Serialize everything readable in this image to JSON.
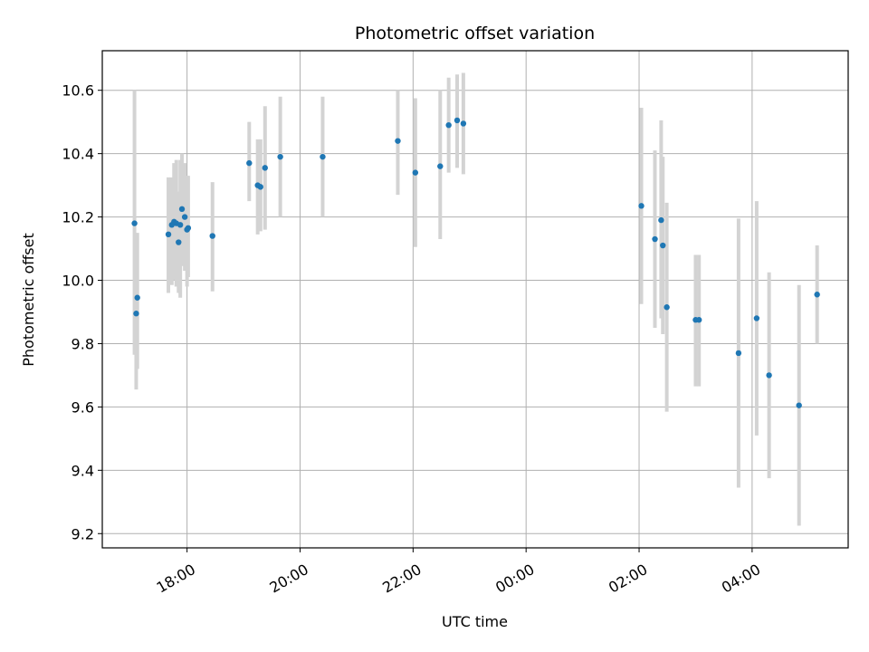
{
  "chart_data": {
    "type": "scatter",
    "title": "Photometric offset variation",
    "xlabel": "UTC time",
    "ylabel": "Photometric offset",
    "x_axis": "time (UTC, hours since 00:00 of first day)",
    "xlim": [
      16.5,
      29.7
    ],
    "ylim": [
      9.155,
      10.725
    ],
    "x_ticks": [
      {
        "value": 18,
        "label": "18:00"
      },
      {
        "value": 20,
        "label": "20:00"
      },
      {
        "value": 22,
        "label": "22:00"
      },
      {
        "value": 24,
        "label": "00:00"
      },
      {
        "value": 26,
        "label": "02:00"
      },
      {
        "value": 28,
        "label": "04:00"
      }
    ],
    "y_ticks": [
      {
        "value": 9.2,
        "label": "9.2"
      },
      {
        "value": 9.4,
        "label": "9.4"
      },
      {
        "value": 9.6,
        "label": "9.6"
      },
      {
        "value": 9.8,
        "label": "9.8"
      },
      {
        "value": 10.0,
        "label": "10.0"
      },
      {
        "value": 10.2,
        "label": "10.2"
      },
      {
        "value": 10.4,
        "label": "10.4"
      },
      {
        "value": 10.6,
        "label": "10.6"
      }
    ],
    "grid": true,
    "marker_color": "#1f77b4",
    "errorbar_color": "#d3d3d3",
    "points": [
      {
        "x": 17.07,
        "y": 10.18,
        "ylo": 9.765,
        "yhi": 10.6
      },
      {
        "x": 17.1,
        "y": 9.895,
        "ylo": 9.655,
        "yhi": 10.1
      },
      {
        "x": 17.12,
        "y": 9.945,
        "ylo": 9.72,
        "yhi": 10.15
      },
      {
        "x": 17.67,
        "y": 10.145,
        "ylo": 9.96,
        "yhi": 10.325
      },
      {
        "x": 17.73,
        "y": 10.175,
        "ylo": 9.985,
        "yhi": 10.325
      },
      {
        "x": 17.77,
        "y": 10.185,
        "ylo": 10.0,
        "yhi": 10.37
      },
      {
        "x": 17.81,
        "y": 10.18,
        "ylo": 9.98,
        "yhi": 10.38
      },
      {
        "x": 17.85,
        "y": 10.12,
        "ylo": 9.96,
        "yhi": 10.28
      },
      {
        "x": 17.88,
        "y": 10.175,
        "ylo": 9.945,
        "yhi": 10.38
      },
      {
        "x": 17.91,
        "y": 10.225,
        "ylo": 10.045,
        "yhi": 10.4
      },
      {
        "x": 17.96,
        "y": 10.2,
        "ylo": 10.03,
        "yhi": 10.37
      },
      {
        "x": 18.0,
        "y": 10.16,
        "ylo": 9.98,
        "yhi": 10.33
      },
      {
        "x": 18.02,
        "y": 10.165,
        "ylo": 10.01,
        "yhi": 10.33
      },
      {
        "x": 18.45,
        "y": 10.14,
        "ylo": 9.965,
        "yhi": 10.31
      },
      {
        "x": 19.1,
        "y": 10.37,
        "ylo": 10.25,
        "yhi": 10.5
      },
      {
        "x": 19.25,
        "y": 10.3,
        "ylo": 10.145,
        "yhi": 10.445
      },
      {
        "x": 19.3,
        "y": 10.295,
        "ylo": 10.155,
        "yhi": 10.445
      },
      {
        "x": 19.38,
        "y": 10.355,
        "ylo": 10.16,
        "yhi": 10.55
      },
      {
        "x": 19.65,
        "y": 10.39,
        "ylo": 10.2,
        "yhi": 10.58
      },
      {
        "x": 20.4,
        "y": 10.39,
        "ylo": 10.2,
        "yhi": 10.58
      },
      {
        "x": 21.73,
        "y": 10.44,
        "ylo": 10.27,
        "yhi": 10.6
      },
      {
        "x": 22.04,
        "y": 10.34,
        "ylo": 10.105,
        "yhi": 10.575
      },
      {
        "x": 22.48,
        "y": 10.36,
        "ylo": 10.13,
        "yhi": 10.6
      },
      {
        "x": 22.63,
        "y": 10.49,
        "ylo": 10.34,
        "yhi": 10.64
      },
      {
        "x": 22.78,
        "y": 10.505,
        "ylo": 10.355,
        "yhi": 10.65
      },
      {
        "x": 22.89,
        "y": 10.495,
        "ylo": 10.335,
        "yhi": 10.655
      },
      {
        "x": 26.04,
        "y": 10.235,
        "ylo": 9.925,
        "yhi": 10.545
      },
      {
        "x": 26.28,
        "y": 10.13,
        "ylo": 9.85,
        "yhi": 10.41
      },
      {
        "x": 26.39,
        "y": 10.19,
        "ylo": 9.88,
        "yhi": 10.505
      },
      {
        "x": 26.42,
        "y": 10.11,
        "ylo": 9.83,
        "yhi": 10.39
      },
      {
        "x": 26.49,
        "y": 9.915,
        "ylo": 9.585,
        "yhi": 10.245
      },
      {
        "x": 27.0,
        "y": 9.875,
        "ylo": 9.665,
        "yhi": 10.08
      },
      {
        "x": 27.06,
        "y": 9.875,
        "ylo": 9.665,
        "yhi": 10.08
      },
      {
        "x": 27.76,
        "y": 9.77,
        "ylo": 9.345,
        "yhi": 10.195
      },
      {
        "x": 28.08,
        "y": 9.88,
        "ylo": 9.51,
        "yhi": 10.25
      },
      {
        "x": 28.3,
        "y": 9.7,
        "ylo": 9.375,
        "yhi": 10.025
      },
      {
        "x": 28.83,
        "y": 9.605,
        "ylo": 9.225,
        "yhi": 9.985
      },
      {
        "x": 29.15,
        "y": 9.955,
        "ylo": 9.8,
        "yhi": 10.11
      }
    ]
  }
}
